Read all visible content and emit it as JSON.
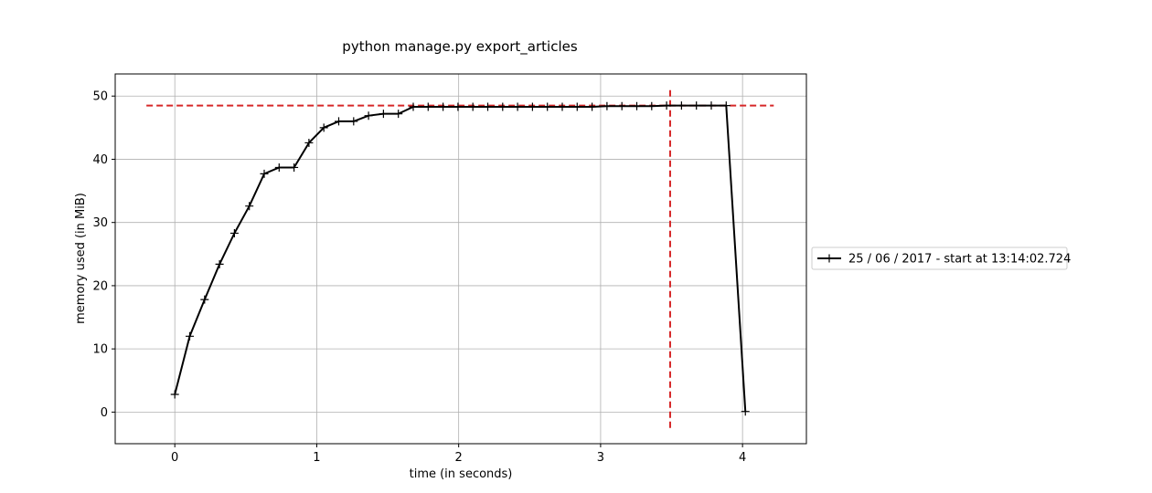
{
  "chart_data": {
    "type": "line",
    "title": "python manage.py export_articles",
    "xlabel": "time (in seconds)",
    "ylabel": "memory used (in MiB)",
    "xlim": [
      -0.42,
      4.45
    ],
    "ylim": [
      -5,
      53.5
    ],
    "xticks": [
      0,
      1,
      2,
      3,
      4
    ],
    "yticks": [
      0,
      10,
      20,
      30,
      40,
      50
    ],
    "grid": true,
    "legend": {
      "position": "right",
      "entries": [
        "25 / 06 / 2017 - start at 13:14:02.724"
      ]
    },
    "colors": {
      "series": "#000000",
      "reference": "#d62728",
      "grid": "#b0b0b0",
      "legend_border": "#cccccc"
    },
    "series": [
      {
        "name": "25 / 06 / 2017 - start at 13:14:02.724",
        "marker": "+",
        "x": [
          0.0,
          0.105,
          0.21,
          0.315,
          0.42,
          0.525,
          0.63,
          0.735,
          0.84,
          0.945,
          1.05,
          1.155,
          1.26,
          1.365,
          1.47,
          1.575,
          1.68,
          1.785,
          1.89,
          1.995,
          2.1,
          2.205,
          2.31,
          2.415,
          2.52,
          2.625,
          2.73,
          2.835,
          2.94,
          3.045,
          3.15,
          3.255,
          3.36,
          3.465,
          3.57,
          3.675,
          3.78,
          3.885,
          4.02
        ],
        "y": [
          2.8,
          12.0,
          17.8,
          23.4,
          28.3,
          32.6,
          37.7,
          38.7,
          38.7,
          42.6,
          45.0,
          46.0,
          46.0,
          46.9,
          47.2,
          47.2,
          48.3,
          48.3,
          48.3,
          48.3,
          48.3,
          48.3,
          48.3,
          48.3,
          48.3,
          48.3,
          48.3,
          48.3,
          48.3,
          48.4,
          48.4,
          48.4,
          48.4,
          48.5,
          48.5,
          48.5,
          48.5,
          48.5,
          0.1
        ]
      }
    ],
    "reference_lines": [
      {
        "orientation": "horizontal",
        "value": 48.5,
        "from": -0.2,
        "to": 4.22
      },
      {
        "orientation": "vertical",
        "value": 3.49,
        "from": -2.5,
        "to": 51.0
      }
    ]
  }
}
